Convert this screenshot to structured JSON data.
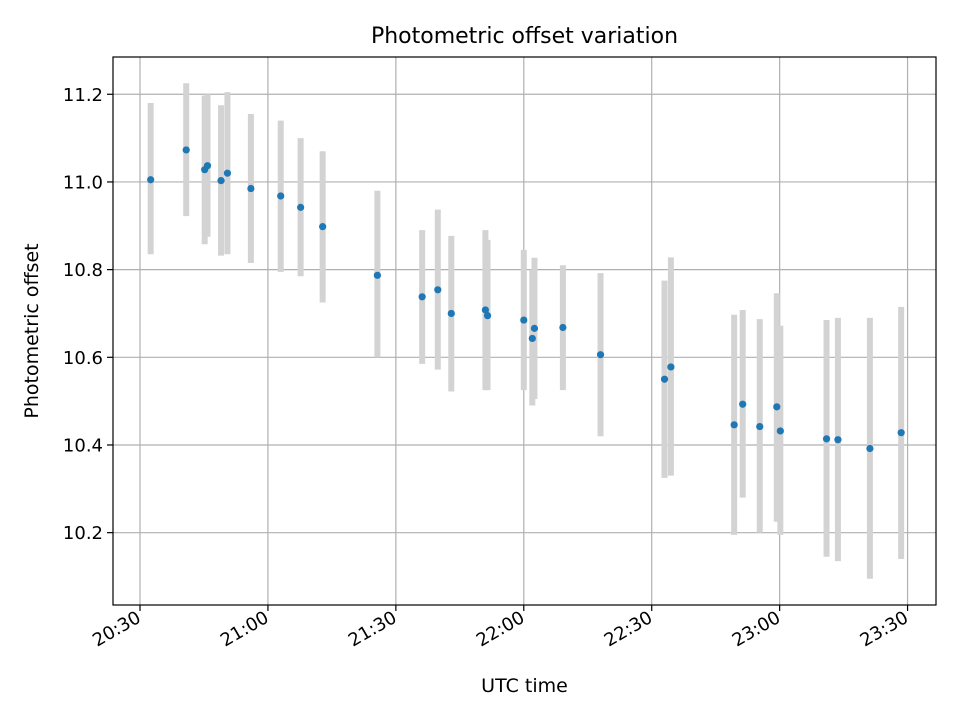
{
  "chart_data": {
    "type": "scatter",
    "title": "Photometric offset variation",
    "xlabel": "UTC time",
    "ylabel": "Photometric offset",
    "x_unit": "UTC time (HH:MM)",
    "xlim": [
      "20:23:40",
      "23:36:40"
    ],
    "ylim": [
      10.035,
      11.285
    ],
    "x_ticks": [
      "20:30",
      "21:00",
      "21:30",
      "22:00",
      "22:30",
      "23:00",
      "23:30"
    ],
    "y_ticks": [
      "10.2",
      "10.4",
      "10.6",
      "10.8",
      "11.0",
      "11.2"
    ],
    "grid": true,
    "point_color": "#1f77b4",
    "errorbar_color": "#d3d3d3",
    "series": [
      {
        "points": [
          {
            "x": "20:32:30",
            "y": 11.005,
            "ylow": 10.835,
            "yhigh": 11.18
          },
          {
            "x": "20:40:50",
            "y": 11.073,
            "ylow": 10.922,
            "yhigh": 11.225
          },
          {
            "x": "20:45:10",
            "y": 11.028,
            "ylow": 10.858,
            "yhigh": 11.197
          },
          {
            "x": "20:45:50",
            "y": 11.037,
            "ylow": 10.875,
            "yhigh": 11.2
          },
          {
            "x": "20:49:00",
            "y": 11.003,
            "ylow": 10.832,
            "yhigh": 11.175
          },
          {
            "x": "20:50:30",
            "y": 11.02,
            "ylow": 10.835,
            "yhigh": 11.205
          },
          {
            "x": "20:56:00",
            "y": 10.985,
            "ylow": 10.815,
            "yhigh": 11.155
          },
          {
            "x": "21:03:00",
            "y": 10.968,
            "ylow": 10.795,
            "yhigh": 11.14
          },
          {
            "x": "21:07:40",
            "y": 10.942,
            "ylow": 10.785,
            "yhigh": 11.1
          },
          {
            "x": "21:12:50",
            "y": 10.898,
            "ylow": 10.725,
            "yhigh": 11.07
          },
          {
            "x": "21:25:40",
            "y": 10.787,
            "ylow": 10.6,
            "yhigh": 10.98
          },
          {
            "x": "21:36:10",
            "y": 10.738,
            "ylow": 10.585,
            "yhigh": 10.89
          },
          {
            "x": "21:39:50",
            "y": 10.754,
            "ylow": 10.572,
            "yhigh": 10.937
          },
          {
            "x": "21:43:00",
            "y": 10.7,
            "ylow": 10.522,
            "yhigh": 10.877
          },
          {
            "x": "21:51:00",
            "y": 10.708,
            "ylow": 10.525,
            "yhigh": 10.89
          },
          {
            "x": "21:51:30",
            "y": 10.695,
            "ylow": 10.525,
            "yhigh": 10.868
          },
          {
            "x": "22:00:00",
            "y": 10.685,
            "ylow": 10.525,
            "yhigh": 10.845
          },
          {
            "x": "22:02:00",
            "y": 10.643,
            "ylow": 10.49,
            "yhigh": 10.8
          },
          {
            "x": "22:02:30",
            "y": 10.666,
            "ylow": 10.505,
            "yhigh": 10.827
          },
          {
            "x": "22:09:10",
            "y": 10.668,
            "ylow": 10.525,
            "yhigh": 10.81
          },
          {
            "x": "22:18:00",
            "y": 10.606,
            "ylow": 10.42,
            "yhigh": 10.792
          },
          {
            "x": "22:33:00",
            "y": 10.55,
            "ylow": 10.325,
            "yhigh": 10.775
          },
          {
            "x": "22:34:30",
            "y": 10.578,
            "ylow": 10.33,
            "yhigh": 10.828
          },
          {
            "x": "22:49:20",
            "y": 10.446,
            "ylow": 10.195,
            "yhigh": 10.697
          },
          {
            "x": "22:51:20",
            "y": 10.493,
            "ylow": 10.28,
            "yhigh": 10.708
          },
          {
            "x": "22:55:20",
            "y": 10.442,
            "ylow": 10.2,
            "yhigh": 10.687
          },
          {
            "x": "22:59:20",
            "y": 10.487,
            "ylow": 10.225,
            "yhigh": 10.746
          },
          {
            "x": "23:00:10",
            "y": 10.432,
            "ylow": 10.195,
            "yhigh": 10.672
          },
          {
            "x": "23:11:00",
            "y": 10.414,
            "ylow": 10.145,
            "yhigh": 10.685
          },
          {
            "x": "23:13:40",
            "y": 10.412,
            "ylow": 10.135,
            "yhigh": 10.69
          },
          {
            "x": "23:21:10",
            "y": 10.392,
            "ylow": 10.095,
            "yhigh": 10.69
          },
          {
            "x": "23:28:30",
            "y": 10.428,
            "ylow": 10.14,
            "yhigh": 10.715
          }
        ]
      }
    ]
  }
}
